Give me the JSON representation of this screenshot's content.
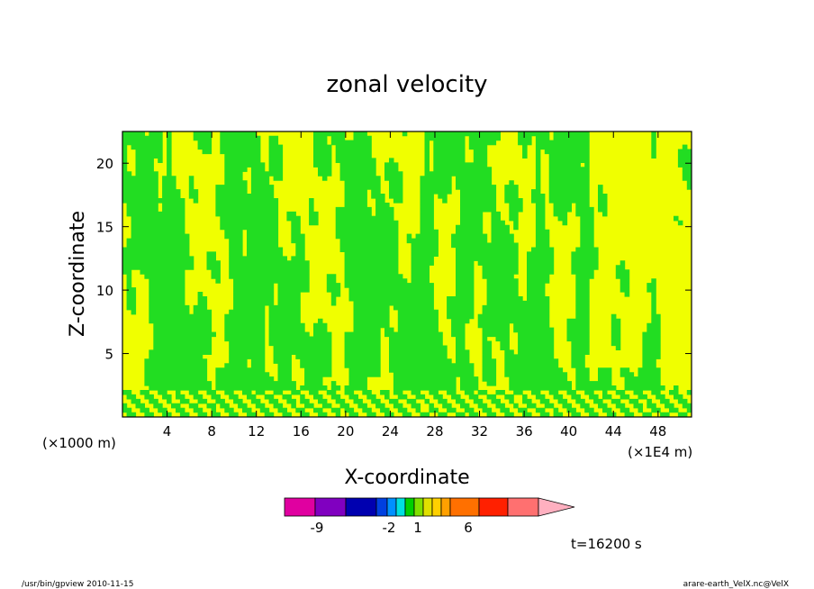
{
  "chart_data": {
    "type": "heatmap",
    "title": "zonal velocity",
    "xlabel": "X-coordinate",
    "ylabel": "Z-coordinate",
    "x_unit_label": "(×1E4 m)",
    "y_unit_label": "(×1000 m)",
    "x_ticks": [
      "4",
      "8",
      "12",
      "16",
      "20",
      "24",
      "28",
      "32",
      "36",
      "40",
      "44",
      "48"
    ],
    "y_ticks": [
      "5",
      "10",
      "15",
      "20"
    ],
    "xlim": [
      0,
      51
    ],
    "ylim": [
      0,
      22.5
    ],
    "colorbar": {
      "labels": [
        "-9",
        "-2",
        "1",
        "6"
      ],
      "colors": [
        "#e000a0",
        "#8000c0",
        "#0000b0",
        "#0040e0",
        "#0090ff",
        "#00e0e0",
        "#00d000",
        "#80e000",
        "#e0e000",
        "#ffd000",
        "#ffa000",
        "#ff7000",
        "#ff2000",
        "#ff7070",
        "#ffb0c0"
      ]
    },
    "fill_colors": {
      "negative": "#22dd22",
      "positive": "#f0ff00"
    },
    "time_label": "t=16200 s"
  },
  "footer": {
    "left": "/usr/bin/gpview  2010-11-15",
    "right": "arare-earth_VelX.nc@VelX"
  }
}
